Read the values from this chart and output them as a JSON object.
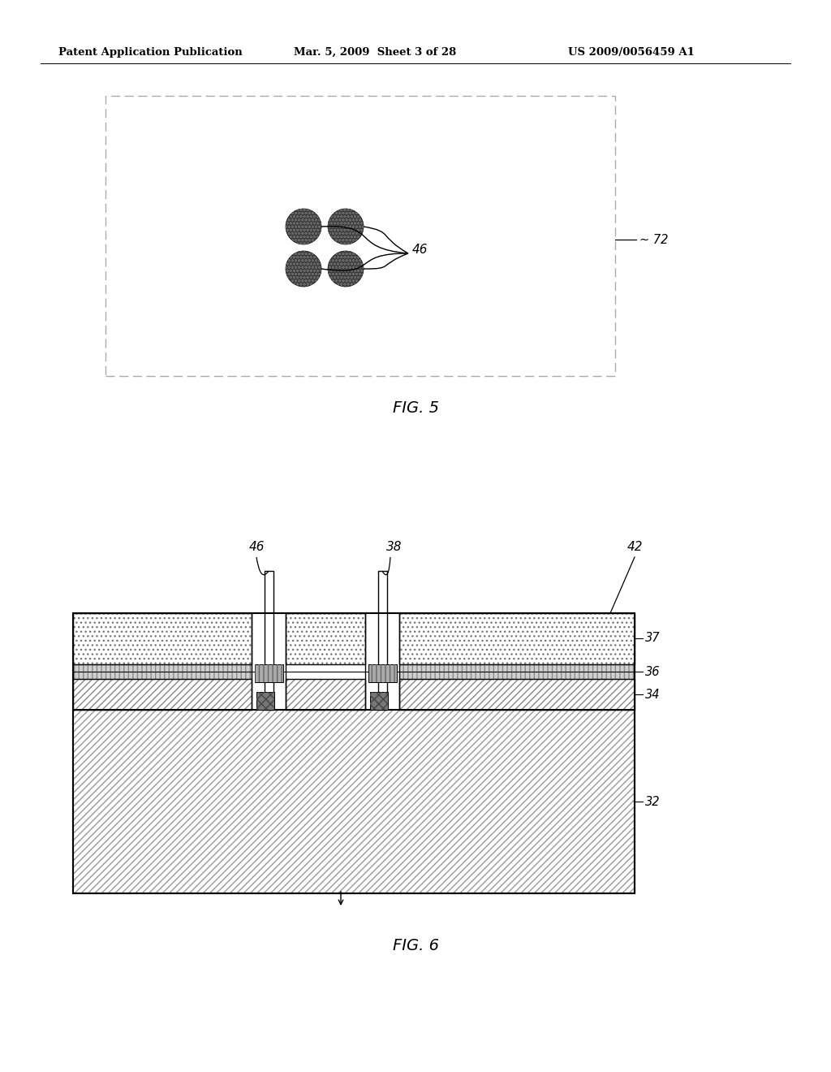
{
  "page_header_left": "Patent Application Publication",
  "page_header_mid": "Mar. 5, 2009  Sheet 3 of 28",
  "page_header_right": "US 2009/0056459 A1",
  "fig5_label": "FIG. 5",
  "fig6_label": "FIG. 6",
  "label_46": "46",
  "label_72": "~ 72",
  "label_38": "38",
  "label_42": "42",
  "label_37": "37",
  "label_36": "36",
  "label_34": "34",
  "label_32": "32",
  "label_46b": "46",
  "bg_color": "#ffffff",
  "dot_color": "#3a3a3a",
  "hatch37_color": "#777777",
  "hatch32_color": "#999999",
  "hatch34_color": "#888888",
  "layer36_color": "#cccccc",
  "layer36_dark": "#888888",
  "contact_color": "#666666"
}
